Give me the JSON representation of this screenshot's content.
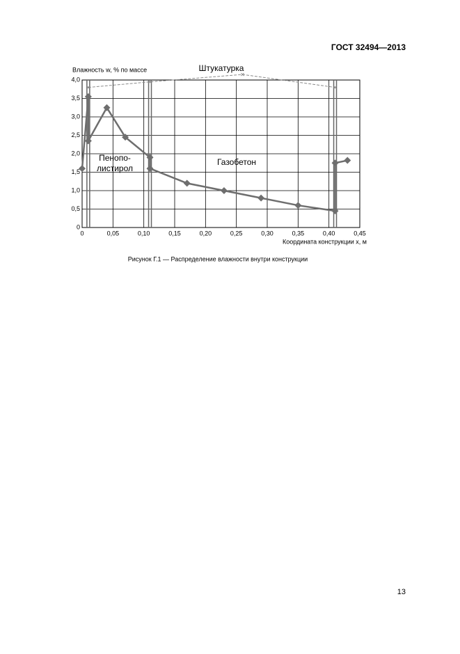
{
  "header": {
    "title": "ГОСТ 32494—2013"
  },
  "chart_data": {
    "type": "line",
    "y_label": "Влажность w, % по массе",
    "x_label": "Координата конструкции x, м",
    "xlim": [
      0,
      0.45
    ],
    "ylim": [
      0,
      4.0
    ],
    "xticks": [
      0,
      {
        "value": 0.05,
        "label": "0,05"
      },
      {
        "value": 0.1,
        "label": "0,10"
      },
      {
        "value": 0.15,
        "label": "0,15"
      },
      {
        "value": 0.2,
        "label": "0,20"
      },
      {
        "value": 0.25,
        "label": "0,25"
      },
      {
        "value": 0.3,
        "label": "0,30"
      },
      {
        "value": 0.35,
        "label": "0,35"
      },
      {
        "value": 0.4,
        "label": "0,40"
      },
      {
        "value": 0.45,
        "label": "0,45"
      }
    ],
    "yticks": [
      0,
      {
        "value": 0.5,
        "label": "0,5"
      },
      {
        "value": 1.0,
        "label": "1,0"
      },
      {
        "value": 1.5,
        "label": "1,5"
      },
      {
        "value": 2.0,
        "label": "2,0"
      },
      {
        "value": 2.5,
        "label": "2,5"
      },
      {
        "value": 3.0,
        "label": "3,0"
      },
      {
        "value": 3.5,
        "label": "3,5"
      },
      {
        "value": 4.0,
        "label": "4,0"
      }
    ],
    "grid": true,
    "layer_boundaries": [
      0.01,
      0.11,
      0.41
    ],
    "series": [
      {
        "color": "#6e6e6e",
        "marker": "diamond",
        "x": [
          0,
          0.01,
          0.01,
          0.04,
          0.07,
          0.11,
          0.11,
          0.17,
          0.23,
          0.29,
          0.35,
          0.41,
          0.41,
          0.43
        ],
        "values": [
          1.6,
          3.55,
          2.35,
          3.25,
          2.45,
          1.9,
          1.6,
          1.2,
          1.0,
          0.8,
          0.6,
          0.45,
          1.75,
          1.82
        ]
      },
      {
        "name": "Штукатурка",
        "color": "#8a8a8a",
        "marker": "x",
        "x": [
          0.01,
          0.11,
          0.26,
          0.41
        ],
        "values": [
          3.8,
          3.95,
          4.15,
          3.8
        ]
      }
    ],
    "annotations": [
      "Пенопо-",
      "листирол",
      "Газобетон"
    ]
  },
  "caption": "Рисунок Г.1 — Распределение влажности внутри конструкции",
  "page_number": "13"
}
